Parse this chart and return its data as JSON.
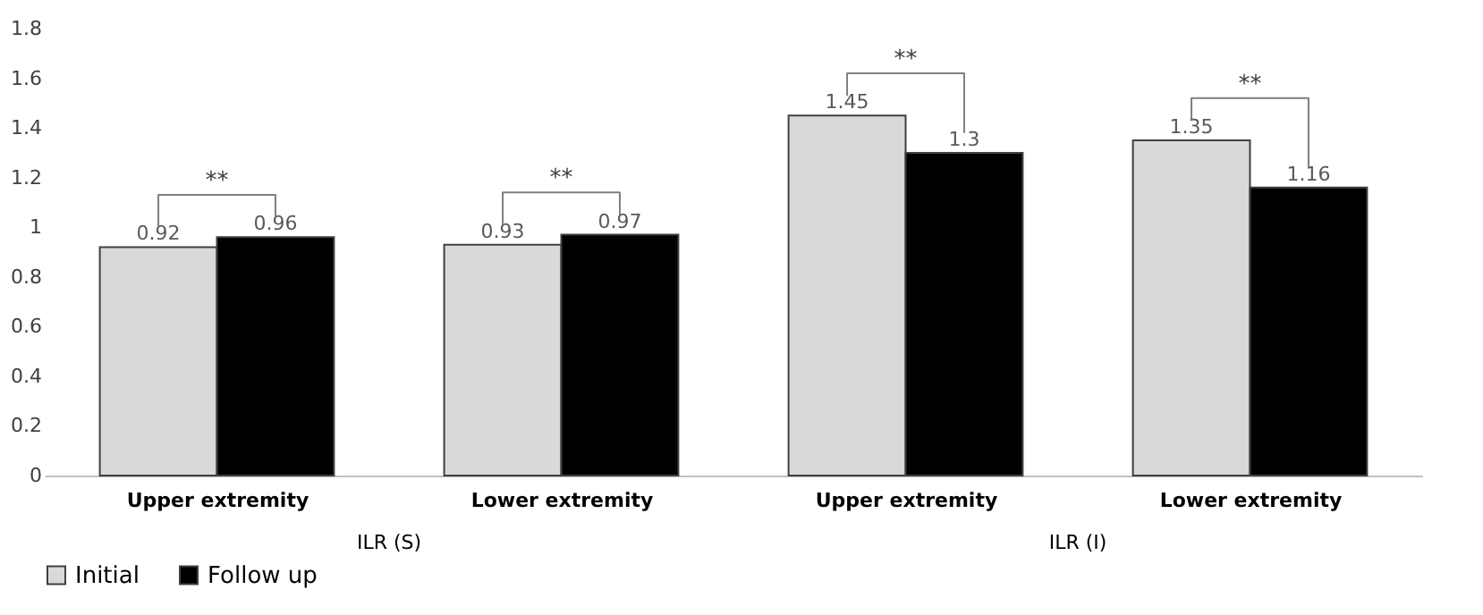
{
  "chart_data": {
    "type": "bar",
    "categories": [
      "Upper extremity",
      "Lower extremity",
      "Upper extremity",
      "Lower extremity"
    ],
    "series": [
      {
        "name": "Initial",
        "color": "#d9d9d9",
        "values": [
          0.92,
          0.93,
          1.45,
          1.35
        ]
      },
      {
        "name": "Follow up",
        "color": "#000000",
        "values": [
          0.96,
          0.97,
          1.3,
          1.16
        ]
      }
    ],
    "ylim": [
      0,
      1.8
    ],
    "yticks": [
      0,
      0.2,
      0.4,
      0.6,
      0.8,
      1,
      1.2,
      1.4,
      1.6,
      1.8
    ],
    "grid": false,
    "legend": "bottom",
    "data_labels": true,
    "annotations": [
      "**",
      "**",
      "**",
      "**",
      "ILR (S)",
      "ILR (I)"
    ]
  }
}
